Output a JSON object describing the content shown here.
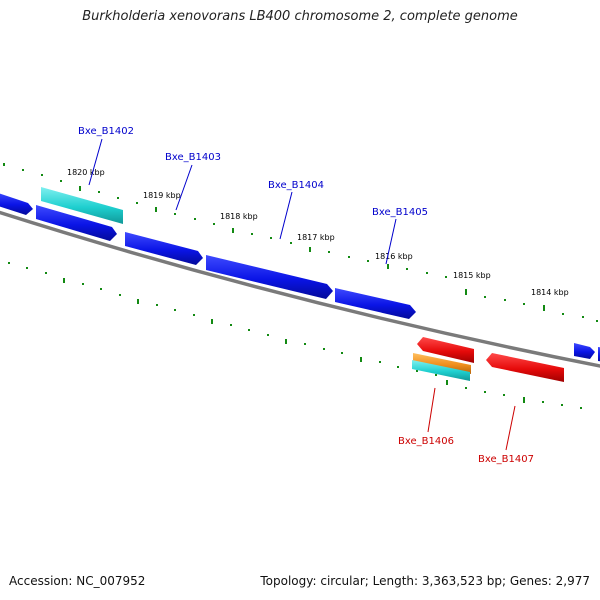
{
  "title": "Burkholderia xenovorans LB400 chromosome 2, complete genome",
  "footer": {
    "accession": "Accession: NC_007952",
    "summary": "Topology: circular; Length: 3,363,523 bp; Genes: 2,977"
  },
  "scale_labels": [
    "1820 kbp",
    "1819 kbp",
    "1818 kbp",
    "1817 kbp",
    "1816 kbp",
    "1815 kbp",
    "1814 kbp"
  ],
  "gene_labels": {
    "forward": [
      "Bxe_B1402",
      "Bxe_B1403",
      "Bxe_B1404",
      "Bxe_B1405"
    ],
    "reverse": [
      "Bxe_B1406",
      "Bxe_B1407"
    ]
  },
  "colors": {
    "forward_gene": "#0a14e6",
    "reverse_gene": "#e60a0a",
    "rna_gene": "#1ecfcf",
    "other_feature": "#f0901e",
    "backbone": "#808080",
    "scale_ticks": "#138a13",
    "forward_label": "#0000cc",
    "reverse_label": "#cc0000"
  }
}
